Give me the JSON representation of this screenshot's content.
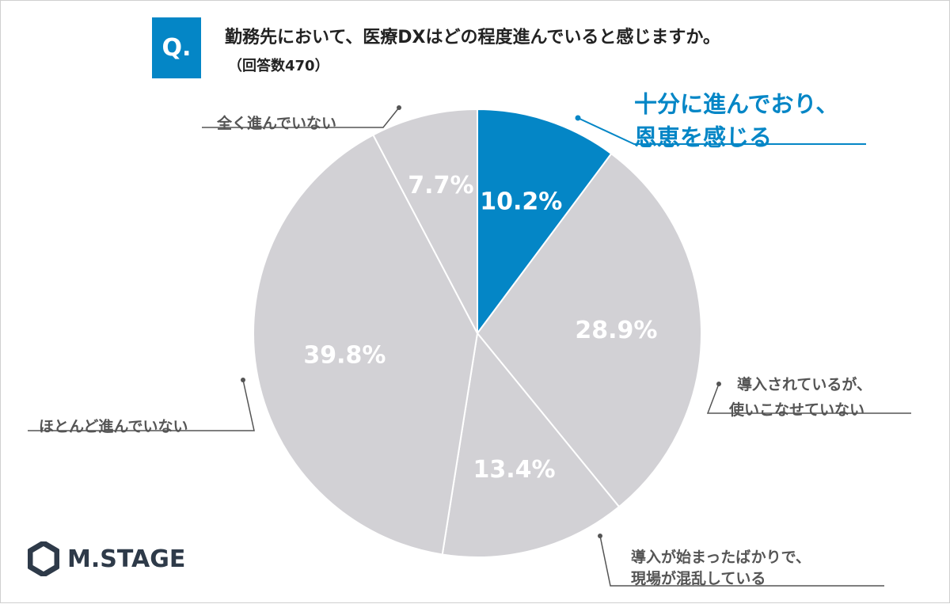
{
  "header": {
    "badge": "Q.",
    "question": "勤務先において、医療DXはどの程度進んでいると感じますか。",
    "respondents": "（回答数470）"
  },
  "brand": {
    "logo_text": "M.STAGE",
    "logo_icon": "hexagon-logo-icon"
  },
  "colors": {
    "accent": "#0486C6",
    "slice_gray": "#D2D1D5",
    "label_gray": "#555555",
    "logo_dark": "#2E3A49"
  },
  "chart_data": {
    "type": "pie",
    "start": "12 o'clock, clockwise",
    "slices": [
      {
        "label_lines": [
          "十分に進んでおり、",
          "恩恵を感じる"
        ],
        "value": 10.2,
        "value_label": "10.2%",
        "highlight": true
      },
      {
        "label_lines": [
          "導入されているが、",
          "使いこなせていない"
        ],
        "value": 28.9,
        "value_label": "28.9%",
        "highlight": false
      },
      {
        "label_lines": [
          "導入が始まったばかりで、",
          "現場が混乱している"
        ],
        "value": 13.4,
        "value_label": "13.4%",
        "highlight": false
      },
      {
        "label_lines": [
          "ほとんど進んでいない"
        ],
        "value": 39.8,
        "value_label": "39.8%",
        "highlight": false
      },
      {
        "label_lines": [
          "全く進んでいない"
        ],
        "value": 7.7,
        "value_label": "7.7%",
        "highlight": false
      }
    ]
  }
}
